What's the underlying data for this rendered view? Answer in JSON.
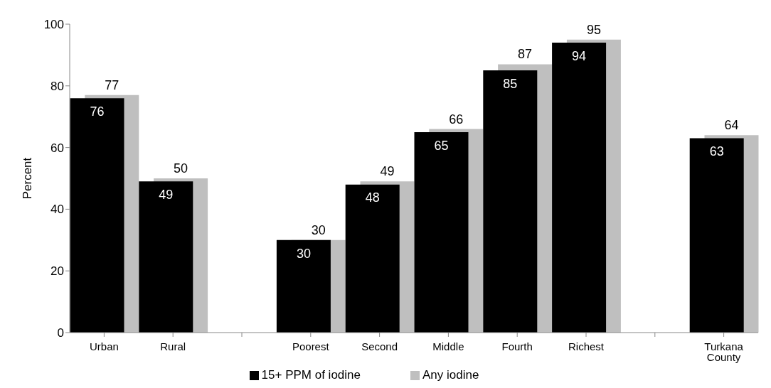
{
  "chart_data": {
    "type": "bar",
    "ylabel": "Percent",
    "categories": [
      "Urban",
      "Rural",
      null,
      "Poorest",
      "Second",
      "Middle",
      "Fourth",
      "Richest",
      null,
      "Turkana County"
    ],
    "series": [
      {
        "name": "Any iodine",
        "color": "#bfbfbf",
        "values": [
          77,
          50,
          null,
          30,
          49,
          66,
          87,
          95,
          null,
          64
        ]
      },
      {
        "name": "15+ PPM of iodine",
        "color": "#000000",
        "values": [
          76,
          49,
          null,
          30,
          48,
          65,
          85,
          94,
          null,
          63
        ]
      }
    ],
    "ylim": [
      0,
      100
    ],
    "yticks": [
      0,
      20,
      40,
      60,
      80,
      100
    ],
    "grid": false,
    "legend": "bottom",
    "data_labels": true
  }
}
